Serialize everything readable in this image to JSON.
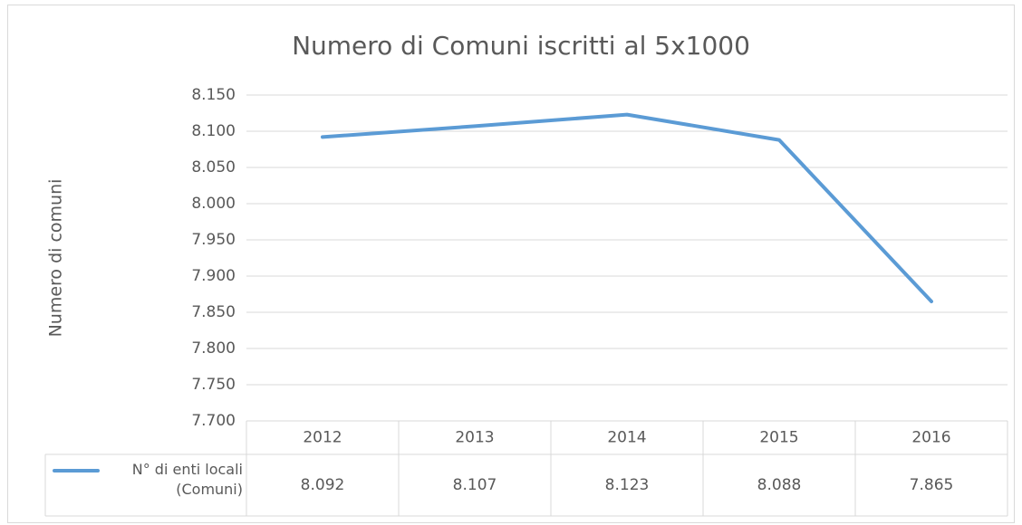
{
  "chart_data": {
    "type": "line",
    "title": "Numero di Comuni iscritti al 5x1000",
    "y_label": "Numero di comuni",
    "categories": [
      "2012",
      "2013",
      "2014",
      "2015",
      "2016"
    ],
    "series": [
      {
        "name": "N° di enti locali (Comuni)",
        "color": "#5b9bd5",
        "values": [
          8092,
          8107,
          8123,
          8088,
          7865
        ],
        "value_labels": [
          "8.092",
          "8.107",
          "8.123",
          "8.088",
          "7.865"
        ]
      }
    ],
    "ylim": [
      7700,
      8150
    ],
    "yticks": [
      {
        "value": 7700,
        "label": "7.700"
      },
      {
        "value": 7750,
        "label": "7.750"
      },
      {
        "value": 7800,
        "label": "7.800"
      },
      {
        "value": 7850,
        "label": "7.850"
      },
      {
        "value": 7900,
        "label": "7.900"
      },
      {
        "value": 7950,
        "label": "7.950"
      },
      {
        "value": 8000,
        "label": "8.000"
      },
      {
        "value": 8050,
        "label": "8.050"
      },
      {
        "value": 8100,
        "label": "8.100"
      },
      {
        "value": 8150,
        "label": "8.150"
      }
    ],
    "grid": true,
    "data_table": true
  }
}
